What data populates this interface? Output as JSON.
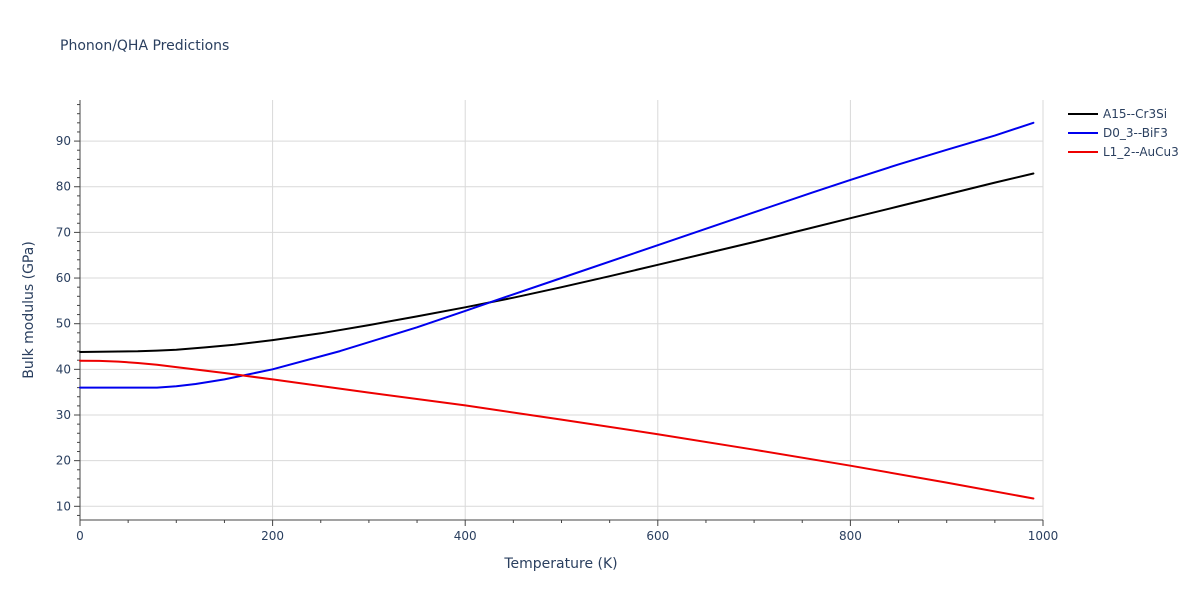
{
  "chart_data": {
    "type": "line",
    "title": "Phonon/QHA Predictions",
    "xlabel": "Temperature (K)",
    "ylabel": "Bulk modulus (GPa)",
    "xlim": [
      0,
      1000
    ],
    "ylim": [
      7,
      99
    ],
    "x_ticks": [
      0,
      200,
      400,
      600,
      800,
      1000
    ],
    "y_ticks": [
      10,
      20,
      30,
      40,
      50,
      60,
      70,
      80,
      90
    ],
    "grid": true,
    "legend_position": "top-right",
    "series": [
      {
        "name": "A15--Cr3Si",
        "color": "#000000",
        "x": [
          0,
          20,
          40,
          60,
          80,
          100,
          130,
          160,
          200,
          250,
          300,
          350,
          400,
          450,
          500,
          550,
          600,
          650,
          700,
          750,
          800,
          850,
          900,
          950,
          990
        ],
        "y": [
          43.8,
          43.85,
          43.9,
          43.95,
          44.1,
          44.3,
          44.8,
          45.4,
          46.4,
          47.9,
          49.7,
          51.6,
          53.6,
          55.7,
          58.0,
          60.4,
          62.9,
          65.4,
          67.9,
          70.5,
          73.1,
          75.7,
          78.3,
          80.9,
          82.9
        ]
      },
      {
        "name": "D0_3--BiF3",
        "color": "#0000ee",
        "x": [
          0,
          20,
          40,
          60,
          80,
          100,
          120,
          150,
          200,
          270,
          350,
          400,
          430,
          500,
          600,
          700,
          760,
          800,
          850,
          900,
          950,
          990
        ],
        "y": [
          36.0,
          36.0,
          36.0,
          36.0,
          36.0,
          36.3,
          36.8,
          37.8,
          40.0,
          44.0,
          49.2,
          52.8,
          55.0,
          60.0,
          67.2,
          74.4,
          78.7,
          81.5,
          84.9,
          88.1,
          91.2,
          94.0
        ]
      },
      {
        "name": "L1_2--AuCu3",
        "color": "#ee0000",
        "x": [
          0,
          20,
          40,
          60,
          80,
          100,
          150,
          200,
          300,
          400,
          500,
          600,
          700,
          800,
          900,
          990
        ],
        "y": [
          41.9,
          41.85,
          41.7,
          41.4,
          41.0,
          40.5,
          39.2,
          37.8,
          34.9,
          32.1,
          29.0,
          25.8,
          22.4,
          18.9,
          15.2,
          11.7
        ]
      }
    ]
  }
}
